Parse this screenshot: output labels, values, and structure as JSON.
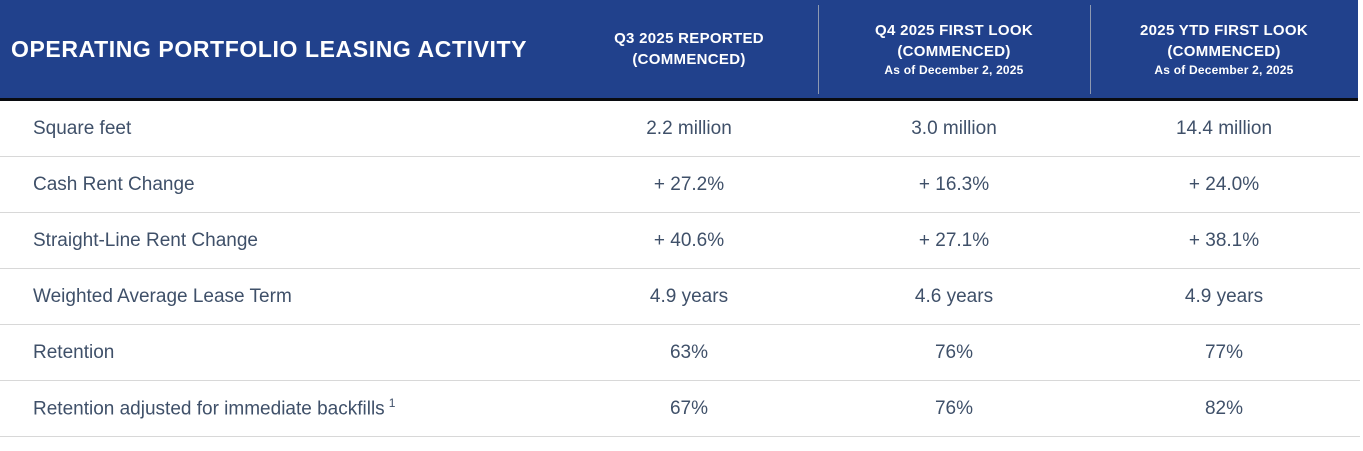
{
  "colors": {
    "header_bg": "#21418C",
    "header_underline": "#090b10",
    "header_divider": "#8E99B1",
    "body_text": "#3F5069",
    "row_divider": "#D8D8D8"
  },
  "header": {
    "title": "OPERATING PORTFOLIO LEASING ACTIVITY",
    "columns": [
      {
        "line1": "Q3 2025 REPORTED",
        "line2": "(COMMENCED)",
        "line3": ""
      },
      {
        "line1": "Q4 2025 FIRST LOOK",
        "line2": "(COMMENCED)",
        "line3": "As of December 2, 2025"
      },
      {
        "line1": "2025 YTD FIRST LOOK",
        "line2": "(COMMENCED)",
        "line3": "As of December 2, 2025"
      }
    ]
  },
  "table": {
    "rows": [
      {
        "label": "Square feet",
        "sup": "",
        "values": [
          "2.2 million",
          "3.0 million",
          "14.4 million"
        ]
      },
      {
        "label": "Cash Rent Change",
        "sup": "",
        "values": [
          "+ 27.2%",
          "+ 16.3%",
          "+ 24.0%"
        ]
      },
      {
        "label": "Straight-Line Rent Change",
        "sup": "",
        "values": [
          "+ 40.6%",
          "+ 27.1%",
          "+ 38.1%"
        ]
      },
      {
        "label": "Weighted Average Lease Term",
        "sup": "",
        "values": [
          "4.9 years",
          "4.6 years",
          "4.9 years"
        ]
      },
      {
        "label": "Retention",
        "sup": "",
        "values": [
          "63%",
          "76%",
          "77%"
        ]
      },
      {
        "label": "Retention adjusted for immediate backfills",
        "sup": "1",
        "values": [
          "67%",
          "76%",
          "82%"
        ]
      }
    ]
  }
}
